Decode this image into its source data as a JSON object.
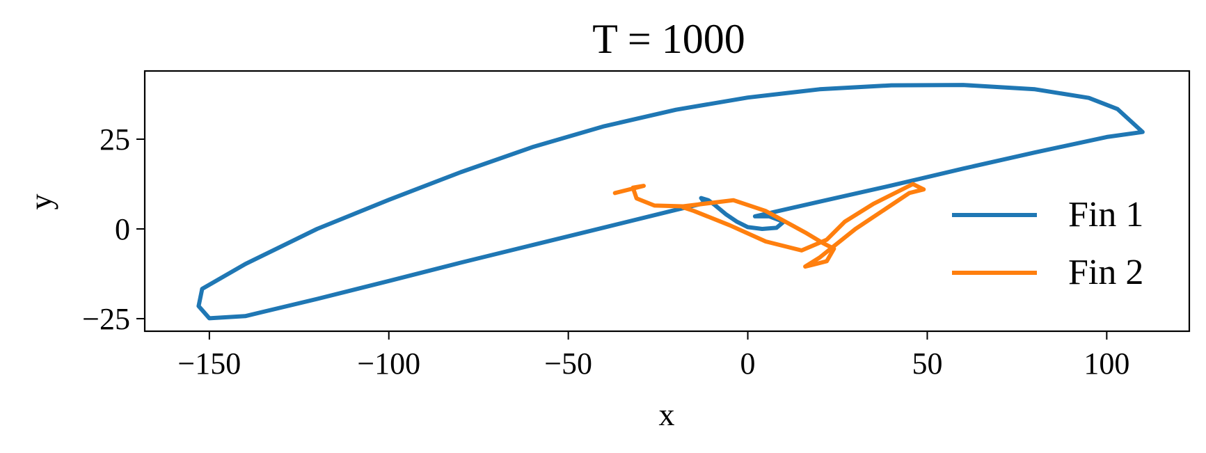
{
  "chart_data": {
    "type": "line",
    "title": "T = 1000",
    "xlabel": "x",
    "ylabel": "y",
    "xlim": [
      -168,
      123
    ],
    "ylim": [
      -28.5,
      44
    ],
    "xticks": [
      -150,
      -100,
      -50,
      0,
      50,
      100
    ],
    "yticks": [
      -25,
      0,
      25
    ],
    "xtick_labels": [
      "−150",
      "−100",
      "−50",
      "0",
      "50",
      "100"
    ],
    "ytick_labels": [
      "−25",
      "0",
      "25"
    ],
    "grid": false,
    "legend_position": "right",
    "series": [
      {
        "name": "Fin 1",
        "color": "#1f77b4",
        "x": [
          2,
          6,
          10,
          8,
          4,
          0,
          -3,
          -6,
          -9,
          -11,
          -13,
          -12,
          -20,
          -40,
          -60,
          -80,
          -100,
          -120,
          -140,
          -150,
          -153,
          -152,
          -140,
          -120,
          -100,
          -80,
          -60,
          -40,
          -20,
          0,
          20,
          40,
          60,
          80,
          95,
          103,
          110,
          100,
          80,
          60,
          40,
          20,
          2
        ],
        "y": [
          3.5,
          3.5,
          2,
          0.3,
          0,
          0.5,
          2,
          4,
          6.5,
          8,
          8.6,
          7.2,
          5.3,
          0.4,
          -4.5,
          -9.4,
          -14.5,
          -19.5,
          -24.3,
          -24.9,
          -21.5,
          -16.7,
          -9.8,
          0,
          8.1,
          15.8,
          22.8,
          28.6,
          33.2,
          36.6,
          38.9,
          40,
          40.1,
          38.9,
          36.5,
          33.4,
          27,
          25.6,
          21.3,
          16.8,
          12.1,
          7.6,
          3.5
        ]
      },
      {
        "name": "Fin 2",
        "color": "#ff7f0e",
        "x": [
          -37,
          -29,
          -32,
          -31,
          -26,
          -18,
          -4,
          5,
          16,
          21,
          24,
          22,
          18,
          16,
          20,
          30,
          45,
          49,
          46,
          35,
          27,
          24,
          22,
          15,
          5,
          -5,
          -15,
          -18
        ],
        "y": [
          10,
          12,
          11.5,
          8.5,
          6.5,
          6.3,
          8,
          5,
          -1,
          -4,
          -5.5,
          -9,
          -10,
          -10.5,
          -8,
          0,
          10,
          11,
          12.5,
          7,
          2,
          -1,
          -3,
          -6,
          -3.5,
          1,
          5,
          6
        ]
      }
    ]
  }
}
